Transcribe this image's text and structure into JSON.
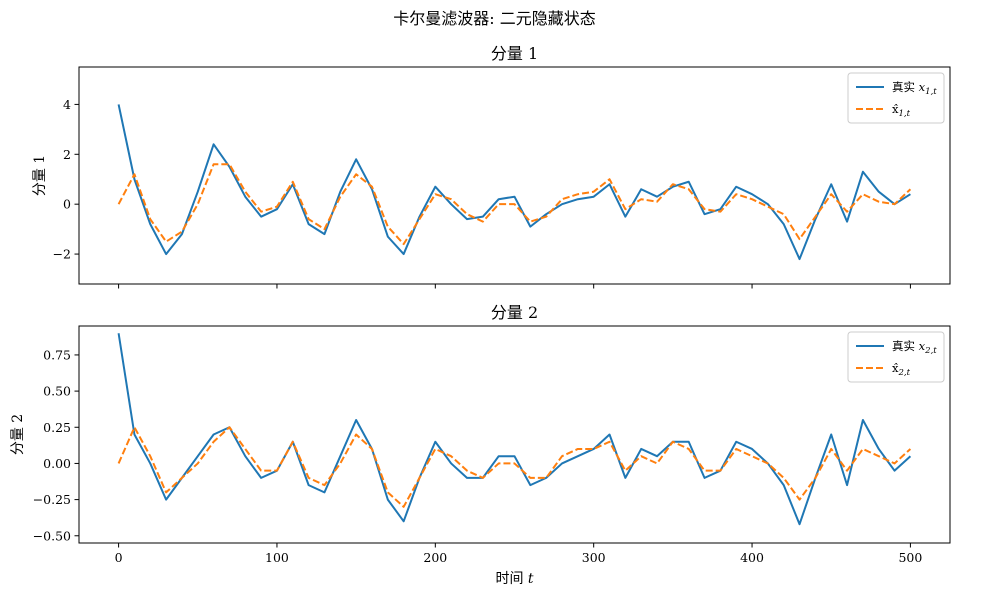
{
  "figure": {
    "suptitle": "卡尔曼滤波器: 二元隐藏状态"
  },
  "chart_data": [
    {
      "type": "line",
      "title": "分量 1",
      "ylabel": "分量 1",
      "xlabel": "",
      "xlim": [
        -25,
        525
      ],
      "ylim": [
        -3.2,
        5.5
      ],
      "xticks": [
        0,
        100,
        200,
        300,
        400,
        500
      ],
      "xtick_labels_visible": false,
      "yticks": [
        -2,
        0,
        2,
        4
      ],
      "ytick_labels": [
        "−2",
        "0",
        "2",
        "4"
      ],
      "legend": "top-right",
      "grid": false,
      "series": [
        {
          "name": "真实 x_{1,t}",
          "color": "#1f77b4",
          "style": "solid",
          "x_step": 10,
          "values": [
            4.0,
            1.0,
            -0.8,
            -2.0,
            -1.2,
            0.5,
            2.4,
            1.5,
            0.3,
            -0.5,
            -0.2,
            0.8,
            -0.8,
            -1.2,
            0.5,
            1.8,
            0.6,
            -1.3,
            -2.0,
            -0.5,
            0.7,
            0.0,
            -0.6,
            -0.5,
            0.2,
            0.3,
            -0.9,
            -0.4,
            0.0,
            0.2,
            0.3,
            0.8,
            -0.5,
            0.6,
            0.3,
            0.7,
            0.9,
            -0.4,
            -0.2,
            0.7,
            0.4,
            0.0,
            -0.8,
            -2.2,
            -0.6,
            0.8,
            -0.7,
            1.3,
            0.5,
            0.0,
            0.4
          ]
        },
        {
          "name": "x̂_{1,t}",
          "color": "#ff7f0e",
          "style": "dashed",
          "x_step": 10,
          "values": [
            0.0,
            1.2,
            -0.6,
            -1.5,
            -1.1,
            0.0,
            1.6,
            1.6,
            0.5,
            -0.3,
            -0.1,
            0.9,
            -0.6,
            -1.0,
            0.3,
            1.2,
            0.7,
            -0.9,
            -1.6,
            -0.6,
            0.4,
            0.2,
            -0.4,
            -0.7,
            0.0,
            0.0,
            -0.7,
            -0.5,
            0.2,
            0.4,
            0.5,
            1.0,
            -0.2,
            0.2,
            0.1,
            0.8,
            0.6,
            -0.2,
            -0.3,
            0.4,
            0.2,
            -0.1,
            -0.4,
            -1.4,
            -0.5,
            0.4,
            -0.3,
            0.4,
            0.1,
            0.0,
            0.6
          ]
        }
      ]
    },
    {
      "type": "line",
      "title": "分量 2",
      "ylabel": "分量 2",
      "xlabel": "时间 t",
      "xlim": [
        -25,
        525
      ],
      "ylim": [
        -0.55,
        0.95
      ],
      "xticks": [
        0,
        100,
        200,
        300,
        400,
        500
      ],
      "xtick_labels": [
        "0",
        "100",
        "200",
        "300",
        "400",
        "500"
      ],
      "yticks": [
        -0.5,
        -0.25,
        0.0,
        0.25,
        0.5,
        0.75
      ],
      "ytick_labels": [
        "−0.50",
        "−0.25",
        "0.00",
        "0.25",
        "0.50",
        "0.75"
      ],
      "legend": "top-right",
      "grid": false,
      "series": [
        {
          "name": "真实 x_{2,t}",
          "color": "#1f77b4",
          "style": "solid",
          "x_step": 10,
          "values": [
            0.9,
            0.2,
            0.0,
            -0.25,
            -0.1,
            0.05,
            0.2,
            0.25,
            0.05,
            -0.1,
            -0.05,
            0.15,
            -0.15,
            -0.2,
            0.05,
            0.3,
            0.1,
            -0.25,
            -0.4,
            -0.1,
            0.15,
            0.0,
            -0.1,
            -0.1,
            0.05,
            0.05,
            -0.15,
            -0.1,
            0.0,
            0.05,
            0.1,
            0.2,
            -0.1,
            0.1,
            0.05,
            0.15,
            0.15,
            -0.1,
            -0.05,
            0.15,
            0.1,
            0.0,
            -0.15,
            -0.42,
            -0.1,
            0.2,
            -0.15,
            0.3,
            0.1,
            -0.05,
            0.05
          ]
        },
        {
          "name": "x̂_{2,t}",
          "color": "#ff7f0e",
          "style": "dashed",
          "x_step": 10,
          "values": [
            0.0,
            0.25,
            0.05,
            -0.2,
            -0.1,
            0.0,
            0.15,
            0.25,
            0.1,
            -0.05,
            -0.05,
            0.15,
            -0.1,
            -0.15,
            0.0,
            0.2,
            0.1,
            -0.2,
            -0.3,
            -0.1,
            0.1,
            0.05,
            -0.05,
            -0.1,
            0.0,
            0.0,
            -0.1,
            -0.1,
            0.05,
            0.1,
            0.1,
            0.15,
            -0.05,
            0.05,
            0.0,
            0.15,
            0.1,
            -0.05,
            -0.05,
            0.1,
            0.05,
            0.0,
            -0.1,
            -0.25,
            -0.1,
            0.1,
            -0.05,
            0.1,
            0.05,
            0.0,
            0.1
          ]
        }
      ]
    }
  ]
}
